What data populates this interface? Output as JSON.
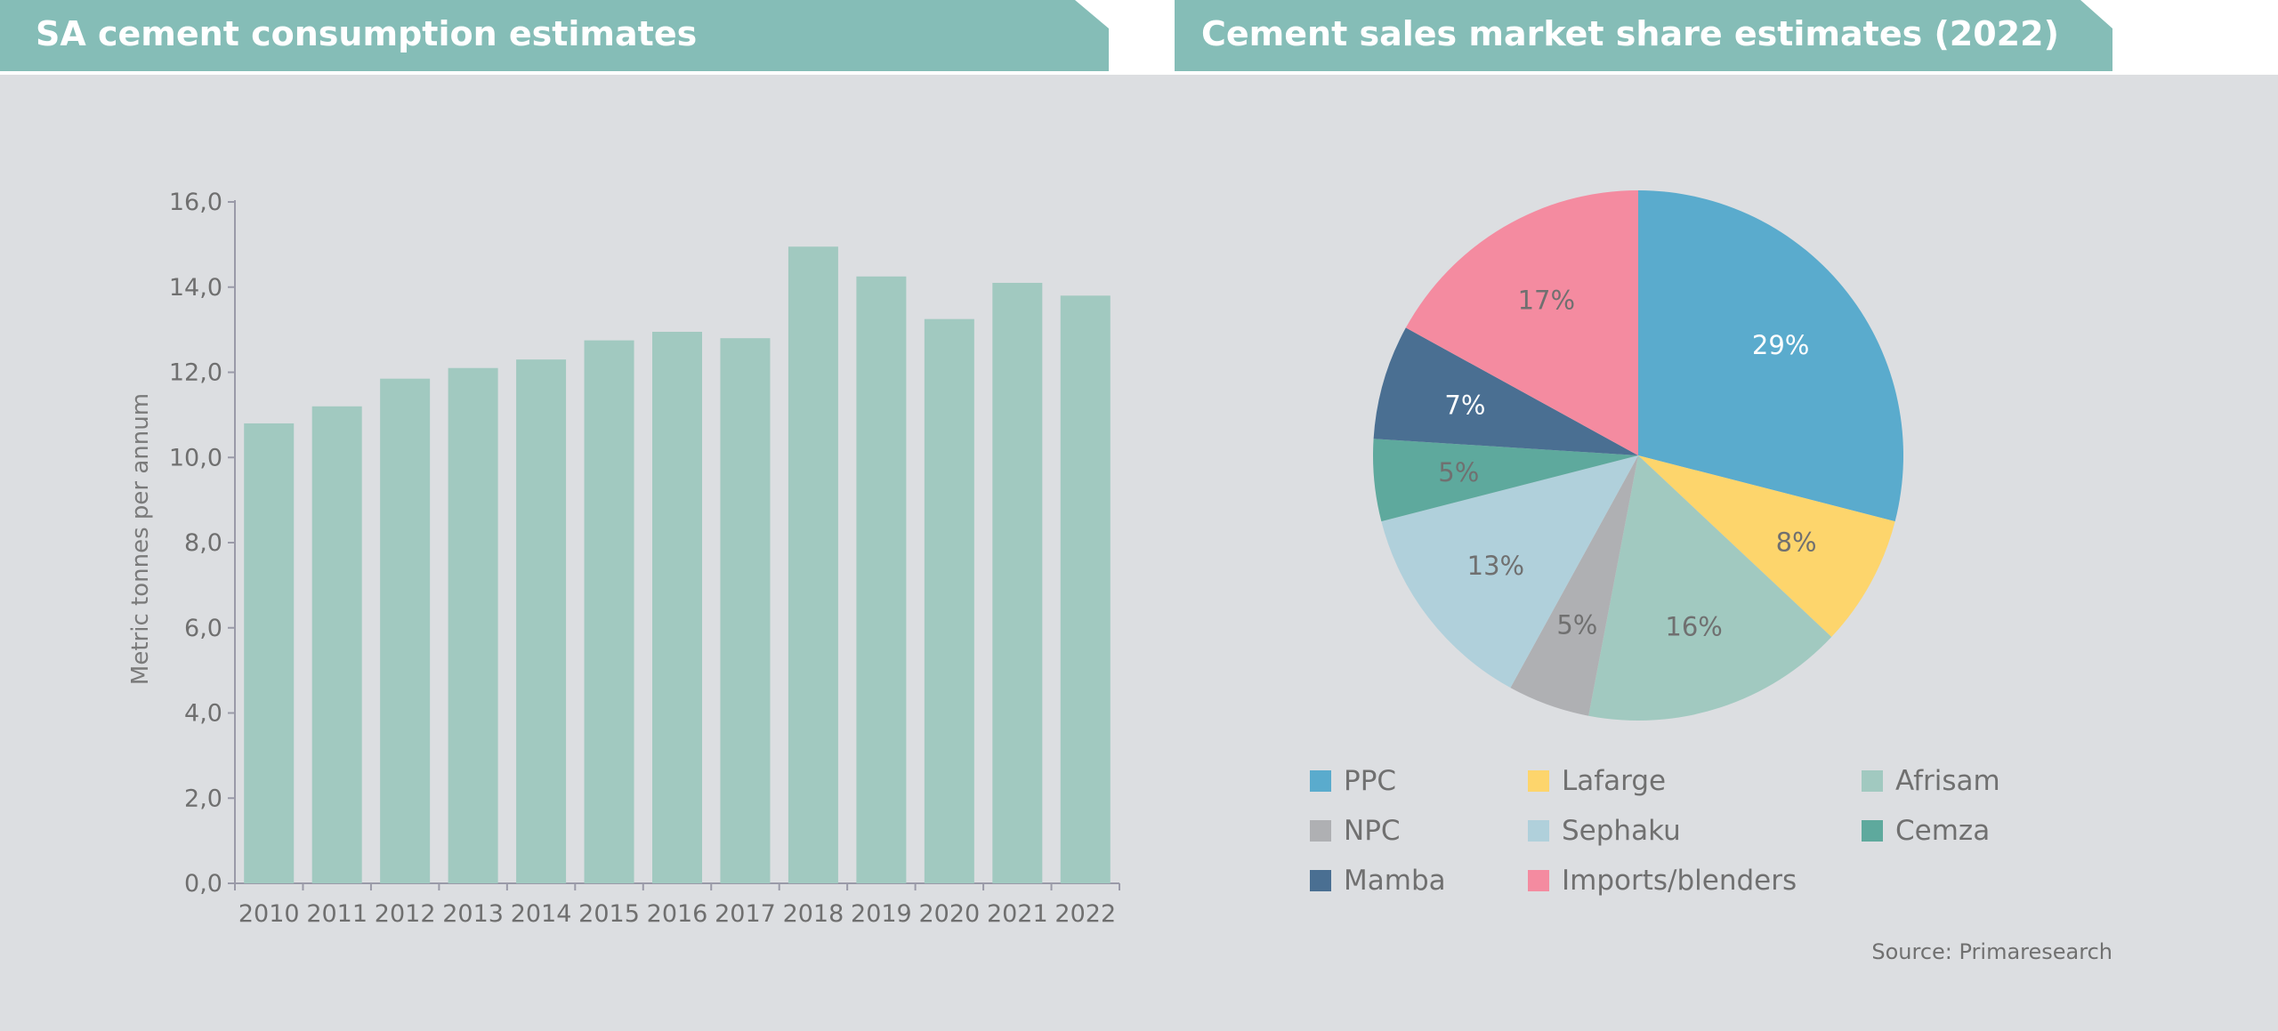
{
  "left_title": "SA cement consumption estimates",
  "right_title": "Cement sales market share estimates (2022)",
  "source": "Source: Primaresearch",
  "colors": {
    "banner": "#85bdb7",
    "panel_background": "#dcdee1",
    "bar": "#a1c9c0",
    "axis": "#9a9aa8"
  },
  "chart_data": [
    {
      "type": "bar",
      "title": "SA cement consumption estimates",
      "xlabel": "",
      "ylabel": "Metric tonnes per annum",
      "categories": [
        "2010",
        "2011",
        "2012",
        "2013",
        "2014",
        "2015",
        "2016",
        "2017",
        "2018",
        "2019",
        "2020",
        "2021",
        "2022"
      ],
      "values": [
        10.8,
        11.2,
        11.85,
        12.1,
        12.3,
        12.75,
        12.95,
        12.8,
        14.95,
        14.25,
        13.25,
        14.1,
        13.8
      ],
      "ylim": [
        0,
        16
      ],
      "yticks": [
        "0,0",
        "2,0",
        "4,0",
        "6,0",
        "8,0",
        "10,0",
        "12,0",
        "14,0",
        "16,0"
      ],
      "grid": false,
      "legend": "none"
    },
    {
      "type": "pie",
      "title": "Cement sales market share estimates (2022)",
      "slices": [
        {
          "name": "PPC",
          "value": 29,
          "label": "29%",
          "color": "#5aabcd",
          "label_color": "#ffffff"
        },
        {
          "name": "Lafarge",
          "value": 8,
          "label": "8%",
          "color": "#fdd56c",
          "label_color": "#707070"
        },
        {
          "name": "Afrisam",
          "value": 16,
          "label": "16%",
          "color": "#a1c9c0",
          "label_color": "#707070"
        },
        {
          "name": "NPC",
          "value": 5,
          "label": "5%",
          "color": "#afb0b3",
          "label_color": "#707070"
        },
        {
          "name": "Sephaku",
          "value": 13,
          "label": "13%",
          "color": "#b0d0db",
          "label_color": "#707070"
        },
        {
          "name": "Cemza",
          "value": 5,
          "label": "5%",
          "color": "#5ea99d",
          "label_color": "#707070"
        },
        {
          "name": "Mamba",
          "value": 7,
          "label": "7%",
          "color": "#4a6f92",
          "label_color": "#ffffff"
        },
        {
          "name": "Imports/blenders",
          "value": 17,
          "label": "17%",
          "color": "#f48ba0",
          "label_color": "#707070"
        }
      ],
      "legend": "bottom",
      "legend_entries": [
        {
          "name": "PPC",
          "color": "#5aabcd"
        },
        {
          "name": "Lafarge",
          "color": "#fdd56c"
        },
        {
          "name": "Afrisam",
          "color": "#a1c9c0"
        },
        {
          "name": "NPC",
          "color": "#afb0b3"
        },
        {
          "name": "Sephaku",
          "color": "#b0d0db"
        },
        {
          "name": "Cemza",
          "color": "#5ea99d"
        },
        {
          "name": "Mamba",
          "color": "#4a6f92"
        },
        {
          "name": "Imports/blenders",
          "color": "#f48ba0"
        }
      ]
    }
  ]
}
